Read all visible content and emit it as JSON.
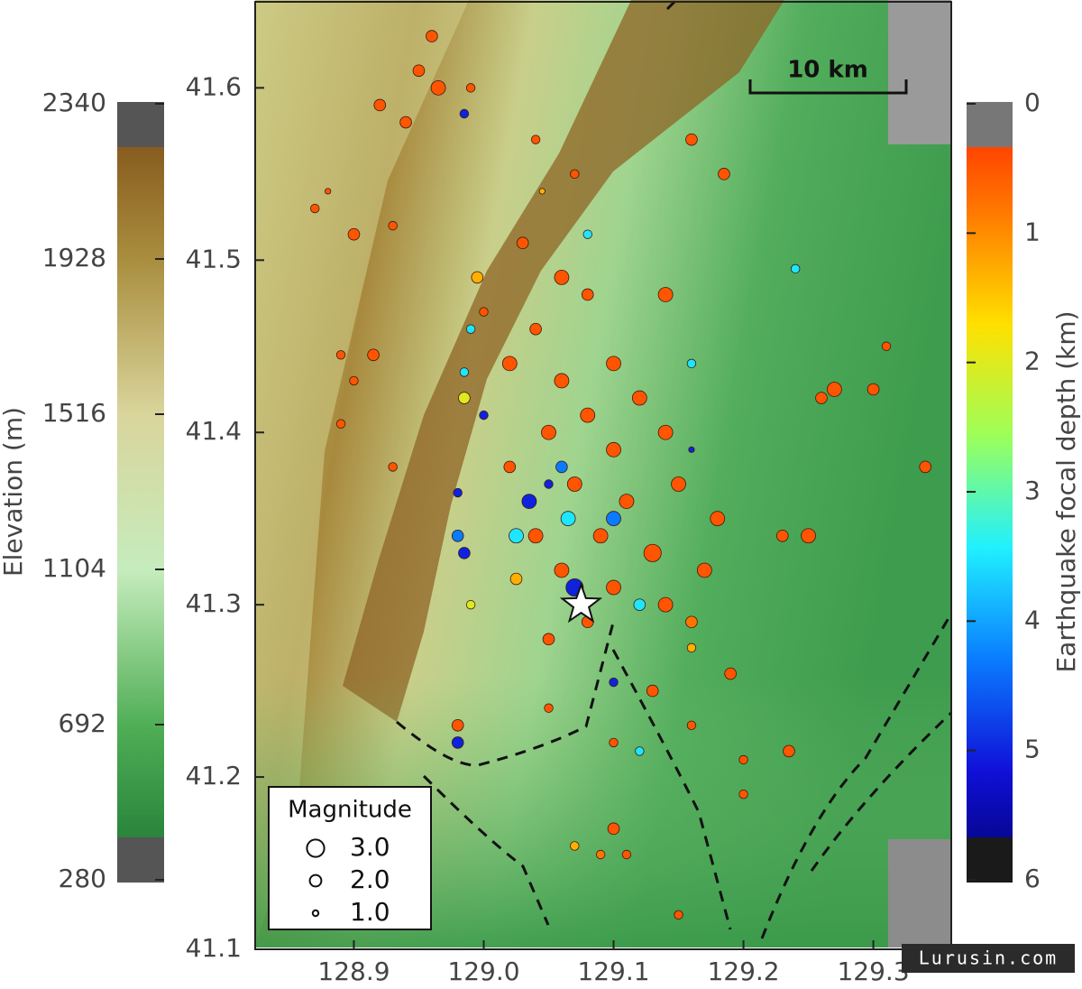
{
  "chart_data": {
    "type": "scatter",
    "xlim": [
      128.824,
      129.36
    ],
    "ylim": [
      41.1,
      41.651
    ],
    "xticks": [
      128.9,
      {
        "value": 129,
        "label": "129.0"
      },
      129.1,
      129.2,
      129.3
    ],
    "yticks": [
      41.1,
      41.2,
      41.3,
      41.4,
      41.5,
      41.6
    ],
    "points": [
      {
        "x": 128.96,
        "y": 41.63,
        "depth": 0.5,
        "magnitude": 2
      },
      {
        "x": 128.95,
        "y": 41.61,
        "depth": 0.5,
        "magnitude": 2
      },
      {
        "x": 128.965,
        "y": 41.6,
        "depth": 0.5,
        "magnitude": 2.5
      },
      {
        "x": 128.92,
        "y": 41.59,
        "depth": 0.5,
        "magnitude": 2
      },
      {
        "x": 128.99,
        "y": 41.6,
        "depth": 0.5,
        "magnitude": 1.5
      },
      {
        "x": 128.94,
        "y": 41.58,
        "depth": 0.5,
        "magnitude": 2
      },
      {
        "x": 129.04,
        "y": 41.57,
        "depth": 0.5,
        "magnitude": 1.5
      },
      {
        "x": 129.07,
        "y": 41.55,
        "depth": 0.5,
        "magnitude": 1.5
      },
      {
        "x": 129.16,
        "y": 41.57,
        "depth": 0.5,
        "magnitude": 2
      },
      {
        "x": 129.185,
        "y": 41.55,
        "depth": 0.5,
        "magnitude": 2
      },
      {
        "x": 128.88,
        "y": 41.54,
        "depth": 0.5,
        "magnitude": 1
      },
      {
        "x": 128.87,
        "y": 41.53,
        "depth": 0.5,
        "magnitude": 1.5
      },
      {
        "x": 128.9,
        "y": 41.515,
        "depth": 0.5,
        "magnitude": 2
      },
      {
        "x": 128.93,
        "y": 41.52,
        "depth": 0.5,
        "magnitude": 1.5
      },
      {
        "x": 129.03,
        "y": 41.51,
        "depth": 0.5,
        "magnitude": 2
      },
      {
        "x": 129.06,
        "y": 41.49,
        "depth": 0.5,
        "magnitude": 2.5
      },
      {
        "x": 129.08,
        "y": 41.48,
        "depth": 0.5,
        "magnitude": 2
      },
      {
        "x": 129.0,
        "y": 41.47,
        "depth": 0.5,
        "magnitude": 1.5
      },
      {
        "x": 129.04,
        "y": 41.46,
        "depth": 0.5,
        "magnitude": 2
      },
      {
        "x": 129.14,
        "y": 41.48,
        "depth": 0.5,
        "magnitude": 2.5
      },
      {
        "x": 128.89,
        "y": 41.445,
        "depth": 0.5,
        "magnitude": 1.5
      },
      {
        "x": 128.915,
        "y": 41.445,
        "depth": 0.5,
        "magnitude": 2
      },
      {
        "x": 128.9,
        "y": 41.43,
        "depth": 0.5,
        "magnitude": 1.5
      },
      {
        "x": 129.02,
        "y": 41.44,
        "depth": 0.5,
        "magnitude": 2.5
      },
      {
        "x": 129.06,
        "y": 41.43,
        "depth": 0.5,
        "magnitude": 2.5
      },
      {
        "x": 129.1,
        "y": 41.44,
        "depth": 0.5,
        "magnitude": 2.5
      },
      {
        "x": 129.08,
        "y": 41.41,
        "depth": 0.5,
        "magnitude": 2.5
      },
      {
        "x": 129.12,
        "y": 41.42,
        "depth": 0.5,
        "magnitude": 2.5
      },
      {
        "x": 129.05,
        "y": 41.4,
        "depth": 0.5,
        "magnitude": 2.5
      },
      {
        "x": 129.1,
        "y": 41.39,
        "depth": 0.5,
        "magnitude": 2.5
      },
      {
        "x": 129.14,
        "y": 41.4,
        "depth": 0.5,
        "magnitude": 2.5
      },
      {
        "x": 129.07,
        "y": 41.37,
        "depth": 0.5,
        "magnitude": 2.5
      },
      {
        "x": 129.11,
        "y": 41.36,
        "depth": 0.5,
        "magnitude": 2.5
      },
      {
        "x": 129.15,
        "y": 41.37,
        "depth": 0.5,
        "magnitude": 2.5
      },
      {
        "x": 129.02,
        "y": 41.38,
        "depth": 0.5,
        "magnitude": 2
      },
      {
        "x": 129.18,
        "y": 41.35,
        "depth": 0.5,
        "magnitude": 2.5
      },
      {
        "x": 129.04,
        "y": 41.34,
        "depth": 0.5,
        "magnitude": 2.5
      },
      {
        "x": 129.09,
        "y": 41.34,
        "depth": 0.5,
        "magnitude": 2.5
      },
      {
        "x": 129.13,
        "y": 41.33,
        "depth": 0.5,
        "magnitude": 3
      },
      {
        "x": 129.17,
        "y": 41.32,
        "depth": 0.5,
        "magnitude": 2.5
      },
      {
        "x": 129.06,
        "y": 41.32,
        "depth": 0.5,
        "magnitude": 2.5
      },
      {
        "x": 129.1,
        "y": 41.31,
        "depth": 0.5,
        "magnitude": 2.5
      },
      {
        "x": 129.14,
        "y": 41.3,
        "depth": 0.5,
        "magnitude": 2.5
      },
      {
        "x": 129.08,
        "y": 41.29,
        "depth": 0.5,
        "magnitude": 2
      },
      {
        "x": 128.89,
        "y": 41.405,
        "depth": 0.5,
        "magnitude": 1.5
      },
      {
        "x": 128.93,
        "y": 41.38,
        "depth": 0.5,
        "magnitude": 1.5
      },
      {
        "x": 129.26,
        "y": 41.42,
        "depth": 0.5,
        "magnitude": 2
      },
      {
        "x": 129.27,
        "y": 41.425,
        "depth": 0.5,
        "magnitude": 2.5
      },
      {
        "x": 129.3,
        "y": 41.425,
        "depth": 0.5,
        "magnitude": 2
      },
      {
        "x": 129.31,
        "y": 41.45,
        "depth": 0.5,
        "magnitude": 1.5
      },
      {
        "x": 129.34,
        "y": 41.38,
        "depth": 0.5,
        "magnitude": 2
      },
      {
        "x": 129.25,
        "y": 41.34,
        "depth": 0.5,
        "magnitude": 2.5
      },
      {
        "x": 129.23,
        "y": 41.34,
        "depth": 0.5,
        "magnitude": 2
      },
      {
        "x": 129.05,
        "y": 41.28,
        "depth": 0.5,
        "magnitude": 2
      },
      {
        "x": 129.13,
        "y": 41.25,
        "depth": 0.5,
        "magnitude": 2
      },
      {
        "x": 129.19,
        "y": 41.26,
        "depth": 0.5,
        "magnitude": 2
      },
      {
        "x": 129.2,
        "y": 41.21,
        "depth": 0.5,
        "magnitude": 1.5
      },
      {
        "x": 129.235,
        "y": 41.215,
        "depth": 0.5,
        "magnitude": 2
      },
      {
        "x": 129.05,
        "y": 41.24,
        "depth": 0.5,
        "magnitude": 1.5
      },
      {
        "x": 129.1,
        "y": 41.22,
        "depth": 0.5,
        "magnitude": 1.5
      },
      {
        "x": 128.98,
        "y": 41.23,
        "depth": 0.5,
        "magnitude": 2
      },
      {
        "x": 129.16,
        "y": 41.23,
        "depth": 0.5,
        "magnitude": 1.5
      },
      {
        "x": 129.1,
        "y": 41.17,
        "depth": 0.5,
        "magnitude": 2
      },
      {
        "x": 129.11,
        "y": 41.155,
        "depth": 0.5,
        "magnitude": 1.5
      },
      {
        "x": 129.15,
        "y": 41.12,
        "depth": 0.5,
        "magnitude": 1.5
      },
      {
        "x": 129.2,
        "y": 41.19,
        "depth": 0.5,
        "magnitude": 1.5
      },
      {
        "x": 128.985,
        "y": 41.585,
        "depth": 5,
        "magnitude": 1.5
      },
      {
        "x": 129.035,
        "y": 41.36,
        "depth": 5,
        "magnitude": 2.5
      },
      {
        "x": 129.0,
        "y": 41.41,
        "depth": 5,
        "magnitude": 1.5
      },
      {
        "x": 128.98,
        "y": 41.365,
        "depth": 5,
        "magnitude": 1.5
      },
      {
        "x": 129.07,
        "y": 41.31,
        "depth": 5,
        "magnitude": 3
      },
      {
        "x": 128.985,
        "y": 41.33,
        "depth": 5,
        "magnitude": 2
      },
      {
        "x": 129.16,
        "y": 41.39,
        "depth": 5,
        "magnitude": 1
      },
      {
        "x": 129.05,
        "y": 41.37,
        "depth": 5,
        "magnitude": 1.5
      },
      {
        "x": 129.1,
        "y": 41.255,
        "depth": 5,
        "magnitude": 1.5
      },
      {
        "x": 128.98,
        "y": 41.22,
        "depth": 5,
        "magnitude": 2
      },
      {
        "x": 129.24,
        "y": 41.495,
        "depth": 3.5,
        "magnitude": 1.5
      },
      {
        "x": 129.025,
        "y": 41.34,
        "depth": 3.5,
        "magnitude": 2.5
      },
      {
        "x": 128.985,
        "y": 41.435,
        "depth": 3.5,
        "magnitude": 1.5
      },
      {
        "x": 129.065,
        "y": 41.35,
        "depth": 3.5,
        "magnitude": 2.5
      },
      {
        "x": 129.12,
        "y": 41.3,
        "depth": 3.5,
        "magnitude": 2
      },
      {
        "x": 129.16,
        "y": 41.44,
        "depth": 3.5,
        "magnitude": 1.5
      },
      {
        "x": 129.08,
        "y": 41.515,
        "depth": 3.5,
        "magnitude": 1.5
      },
      {
        "x": 128.99,
        "y": 41.46,
        "depth": 3.5,
        "magnitude": 1.5
      },
      {
        "x": 129.12,
        "y": 41.215,
        "depth": 3.5,
        "magnitude": 1.5
      },
      {
        "x": 128.98,
        "y": 41.34,
        "depth": 4.3,
        "magnitude": 2
      },
      {
        "x": 129.06,
        "y": 41.38,
        "depth": 4.3,
        "magnitude": 2
      },
      {
        "x": 129.1,
        "y": 41.35,
        "depth": 4.3,
        "magnitude": 2.5
      },
      {
        "x": 128.985,
        "y": 41.42,
        "depth": 2,
        "magnitude": 2
      },
      {
        "x": 128.99,
        "y": 41.3,
        "depth": 2,
        "magnitude": 1.5
      },
      {
        "x": 129.045,
        "y": 41.54,
        "depth": 1.3,
        "magnitude": 1
      },
      {
        "x": 128.995,
        "y": 41.49,
        "depth": 1.3,
        "magnitude": 2
      },
      {
        "x": 129.025,
        "y": 41.315,
        "depth": 1.3,
        "magnitude": 2
      },
      {
        "x": 129.07,
        "y": 41.16,
        "depth": 1.3,
        "magnitude": 1.5
      },
      {
        "x": 129.16,
        "y": 41.275,
        "depth": 1.3,
        "magnitude": 1.5
      },
      {
        "x": 129.16,
        "y": 41.29,
        "depth": 0.8,
        "magnitude": 2
      },
      {
        "x": 129.09,
        "y": 41.155,
        "depth": 0.8,
        "magnitude": 1.5
      }
    ],
    "mainshock": {
      "x": 129.075,
      "y": 41.3
    },
    "scale_bar": {
      "label": "10 km"
    },
    "legend": {
      "title": "Magnitude",
      "entries": [
        {
          "value": 3,
          "label": "3.0"
        },
        {
          "value": 2,
          "label": "2.0"
        },
        {
          "value": 1,
          "label": "1.0"
        }
      ]
    },
    "elevation_colorbar": {
      "label": "Elevation (m)",
      "lim": [
        280,
        2340
      ],
      "ticks": [
        2340,
        1928,
        1516,
        1104,
        692,
        280
      ],
      "colors": [
        "#1b7433",
        "#4fae55",
        "#c6ecbd",
        "#d9d59b",
        "#a98d3e",
        "#7a4812"
      ]
    },
    "depth_colorbar": {
      "label": "Earthquake focal depth (km)",
      "lim": [
        0,
        6
      ],
      "ticks": [
        0,
        1,
        2,
        3,
        4,
        5,
        6
      ],
      "colors": [
        "#ff2000",
        "#ff7a00",
        "#ffe000",
        "#9cff5a",
        "#20f0ff",
        "#0a7cff",
        "#1010d8",
        "#00006a"
      ]
    },
    "watermark": "Lurusin.com"
  }
}
